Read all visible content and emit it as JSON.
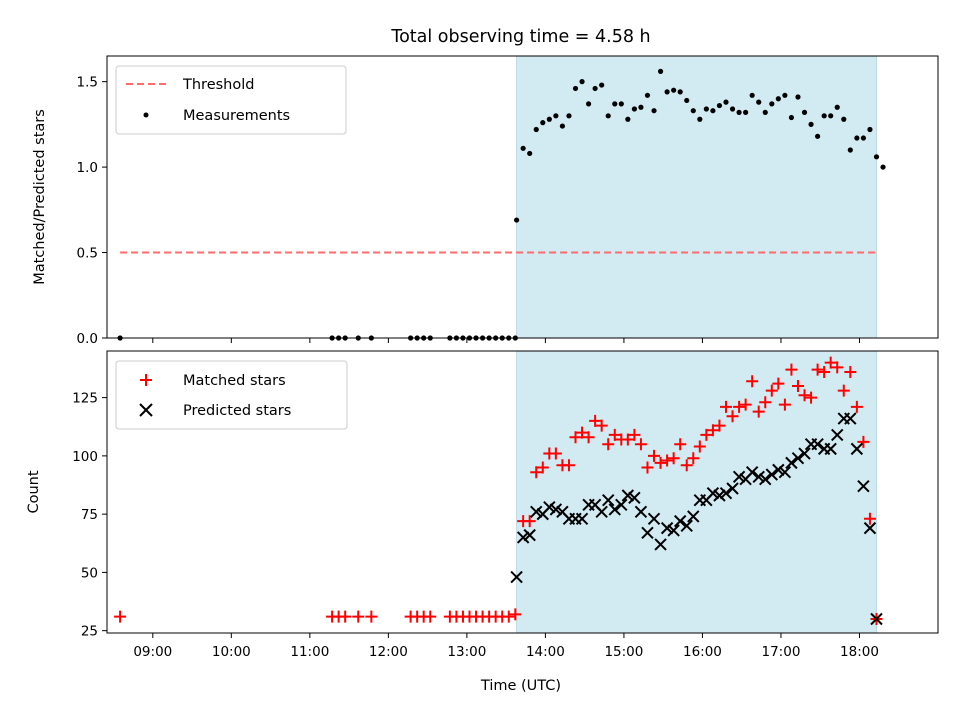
{
  "chart_data": {
    "title": "Total observing time = 4.58 h",
    "xlabel": "Time (UTC)",
    "x_ticks": [
      "09:00",
      "10:00",
      "11:00",
      "12:00",
      "13:00",
      "14:00",
      "15:00",
      "16:00",
      "17:00",
      "18:00"
    ],
    "xlim": [
      "08:25",
      "19:00"
    ],
    "shaded_interval": [
      "13:38",
      "18:13"
    ],
    "shade_color": "#add8e6",
    "panels": [
      {
        "type": "scatter",
        "ylabel": "Matched/Predicted stars",
        "ylim": [
          0,
          1.65
        ],
        "y_ticks": [
          "0.0",
          "0.5",
          "1.0",
          "1.5"
        ],
        "legend_position": "upper left",
        "threshold": {
          "name": "Threshold",
          "value": 0.5,
          "x_range": [
            "08:35",
            "18:13"
          ],
          "color": "#ff6b6b",
          "style": "dashed"
        },
        "series": [
          {
            "name": "Measurements",
            "color": "#000000",
            "marker": "dot",
            "points": [
              [
                "08:35",
                0.0
              ],
              [
                "11:17",
                0.0
              ],
              [
                "11:22",
                0.0
              ],
              [
                "11:27",
                0.0
              ],
              [
                "11:37",
                0.0
              ],
              [
                "11:47",
                0.0
              ],
              [
                "12:17",
                0.0
              ],
              [
                "12:22",
                0.0
              ],
              [
                "12:27",
                0.0
              ],
              [
                "12:32",
                0.0
              ],
              [
                "12:47",
                0.0
              ],
              [
                "12:52",
                0.0
              ],
              [
                "12:57",
                0.0
              ],
              [
                "13:02",
                0.0
              ],
              [
                "13:07",
                0.0
              ],
              [
                "13:12",
                0.0
              ],
              [
                "13:17",
                0.0
              ],
              [
                "13:22",
                0.0
              ],
              [
                "13:27",
                0.0
              ],
              [
                "13:32",
                0.0
              ],
              [
                "13:37",
                0.0
              ],
              [
                "13:38",
                0.69
              ],
              [
                "13:43",
                1.11
              ],
              [
                "13:48",
                1.08
              ],
              [
                "13:53",
                1.22
              ],
              [
                "13:58",
                1.26
              ],
              [
                "14:03",
                1.28
              ],
              [
                "14:08",
                1.3
              ],
              [
                "14:13",
                1.24
              ],
              [
                "14:18",
                1.3
              ],
              [
                "14:23",
                1.46
              ],
              [
                "14:28",
                1.5
              ],
              [
                "14:33",
                1.37
              ],
              [
                "14:38",
                1.46
              ],
              [
                "14:43",
                1.48
              ],
              [
                "14:48",
                1.3
              ],
              [
                "14:53",
                1.37
              ],
              [
                "14:58",
                1.37
              ],
              [
                "15:03",
                1.28
              ],
              [
                "15:08",
                1.34
              ],
              [
                "15:13",
                1.35
              ],
              [
                "15:18",
                1.42
              ],
              [
                "15:23",
                1.33
              ],
              [
                "15:28",
                1.56
              ],
              [
                "15:33",
                1.44
              ],
              [
                "15:38",
                1.45
              ],
              [
                "15:43",
                1.44
              ],
              [
                "15:48",
                1.39
              ],
              [
                "15:53",
                1.33
              ],
              [
                "15:58",
                1.28
              ],
              [
                "16:03",
                1.34
              ],
              [
                "16:08",
                1.33
              ],
              [
                "16:13",
                1.36
              ],
              [
                "16:18",
                1.38
              ],
              [
                "16:23",
                1.34
              ],
              [
                "16:28",
                1.32
              ],
              [
                "16:33",
                1.32
              ],
              [
                "16:38",
                1.42
              ],
              [
                "16:43",
                1.38
              ],
              [
                "16:48",
                1.32
              ],
              [
                "16:53",
                1.37
              ],
              [
                "16:58",
                1.4
              ],
              [
                "17:03",
                1.42
              ],
              [
                "17:08",
                1.29
              ],
              [
                "17:13",
                1.41
              ],
              [
                "17:18",
                1.32
              ],
              [
                "17:23",
                1.25
              ],
              [
                "17:28",
                1.18
              ],
              [
                "17:33",
                1.3
              ],
              [
                "17:38",
                1.3
              ],
              [
                "17:43",
                1.35
              ],
              [
                "17:48",
                1.28
              ],
              [
                "17:53",
                1.1
              ],
              [
                "17:58",
                1.17
              ],
              [
                "18:03",
                1.17
              ],
              [
                "18:08",
                1.22
              ],
              [
                "18:13",
                1.06
              ],
              [
                "18:18",
                1.0
              ]
            ]
          }
        ]
      },
      {
        "type": "scatter",
        "ylabel": "Count",
        "ylim": [
          24,
          145
        ],
        "y_ticks": [
          "25",
          "50",
          "75",
          "100",
          "125"
        ],
        "legend_position": "upper left",
        "series": [
          {
            "name": "Matched stars",
            "color": "#ff0000",
            "marker": "plus",
            "points": [
              [
                "08:35",
                31
              ],
              [
                "11:17",
                31
              ],
              [
                "11:22",
                31
              ],
              [
                "11:27",
                31
              ],
              [
                "11:37",
                31
              ],
              [
                "11:47",
                31
              ],
              [
                "12:17",
                31
              ],
              [
                "12:22",
                31
              ],
              [
                "12:27",
                31
              ],
              [
                "12:32",
                31
              ],
              [
                "12:47",
                31
              ],
              [
                "12:52",
                31
              ],
              [
                "12:57",
                31
              ],
              [
                "13:02",
                31
              ],
              [
                "13:07",
                31
              ],
              [
                "13:12",
                31
              ],
              [
                "13:17",
                31
              ],
              [
                "13:22",
                31
              ],
              [
                "13:27",
                31
              ],
              [
                "13:32",
                31
              ],
              [
                "13:37",
                32
              ],
              [
                "13:43",
                72
              ],
              [
                "13:48",
                72
              ],
              [
                "13:53",
                93
              ],
              [
                "13:58",
                95
              ],
              [
                "14:03",
                101
              ],
              [
                "14:08",
                101
              ],
              [
                "14:13",
                96
              ],
              [
                "14:18",
                96
              ],
              [
                "14:23",
                108
              ],
              [
                "14:28",
                110
              ],
              [
                "14:33",
                108
              ],
              [
                "14:38",
                115
              ],
              [
                "14:43",
                113
              ],
              [
                "14:48",
                105
              ],
              [
                "14:53",
                109
              ],
              [
                "14:58",
                107
              ],
              [
                "15:03",
                107
              ],
              [
                "15:08",
                109
              ],
              [
                "15:13",
                105
              ],
              [
                "15:18",
                95
              ],
              [
                "15:23",
                100
              ],
              [
                "15:28",
                97
              ],
              [
                "15:33",
                98
              ],
              [
                "15:38",
                99
              ],
              [
                "15:43",
                105
              ],
              [
                "15:48",
                96
              ],
              [
                "15:53",
                99
              ],
              [
                "15:58",
                104
              ],
              [
                "16:03",
                109
              ],
              [
                "16:08",
                111
              ],
              [
                "16:13",
                113
              ],
              [
                "16:18",
                121
              ],
              [
                "16:23",
                117
              ],
              [
                "16:28",
                121
              ],
              [
                "16:33",
                122
              ],
              [
                "16:38",
                132
              ],
              [
                "16:43",
                119
              ],
              [
                "16:48",
                123
              ],
              [
                "16:53",
                128
              ],
              [
                "16:58",
                131
              ],
              [
                "17:03",
                122
              ],
              [
                "17:08",
                137
              ],
              [
                "17:13",
                130
              ],
              [
                "17:18",
                126
              ],
              [
                "17:23",
                125
              ],
              [
                "17:28",
                137
              ],
              [
                "17:33",
                136
              ],
              [
                "17:38",
                140
              ],
              [
                "17:43",
                138
              ],
              [
                "17:48",
                128
              ],
              [
                "17:53",
                136
              ],
              [
                "17:58",
                121
              ],
              [
                "18:03",
                106
              ],
              [
                "18:08",
                73
              ],
              [
                "18:13",
                30
              ]
            ]
          },
          {
            "name": "Predicted stars",
            "color": "#000000",
            "marker": "x",
            "points": [
              [
                "13:38",
                48
              ],
              [
                "13:43",
                65
              ],
              [
                "13:48",
                66
              ],
              [
                "13:53",
                76
              ],
              [
                "13:58",
                75
              ],
              [
                "14:03",
                78
              ],
              [
                "14:08",
                77
              ],
              [
                "14:13",
                76
              ],
              [
                "14:18",
                73
              ],
              [
                "14:23",
                73
              ],
              [
                "14:28",
                73
              ],
              [
                "14:33",
                79
              ],
              [
                "14:38",
                79
              ],
              [
                "14:43",
                76
              ],
              [
                "14:48",
                81
              ],
              [
                "14:53",
                77
              ],
              [
                "14:58",
                79
              ],
              [
                "15:03",
                83
              ],
              [
                "15:08",
                82
              ],
              [
                "15:13",
                76
              ],
              [
                "15:18",
                67
              ],
              [
                "15:23",
                73
              ],
              [
                "15:28",
                62
              ],
              [
                "15:33",
                69
              ],
              [
                "15:38",
                68
              ],
              [
                "15:43",
                72
              ],
              [
                "15:48",
                70
              ],
              [
                "15:53",
                74
              ],
              [
                "15:58",
                81
              ],
              [
                "16:03",
                81
              ],
              [
                "16:08",
                84
              ],
              [
                "16:13",
                83
              ],
              [
                "16:18",
                84
              ],
              [
                "16:23",
                86
              ],
              [
                "16:28",
                91
              ],
              [
                "16:33",
                90
              ],
              [
                "16:38",
                93
              ],
              [
                "16:43",
                91
              ],
              [
                "16:48",
                90
              ],
              [
                "16:53",
                92
              ],
              [
                "16:58",
                94
              ],
              [
                "17:03",
                93
              ],
              [
                "17:08",
                97
              ],
              [
                "17:13",
                99
              ],
              [
                "17:18",
                101
              ],
              [
                "17:23",
                105
              ],
              [
                "17:28",
                105
              ],
              [
                "17:33",
                103
              ],
              [
                "17:38",
                103
              ],
              [
                "17:43",
                109
              ],
              [
                "17:48",
                116
              ],
              [
                "17:53",
                116
              ],
              [
                "17:58",
                103
              ],
              [
                "18:03",
                87
              ],
              [
                "18:08",
                69
              ],
              [
                "18:13",
                30
              ]
            ]
          }
        ]
      }
    ]
  }
}
